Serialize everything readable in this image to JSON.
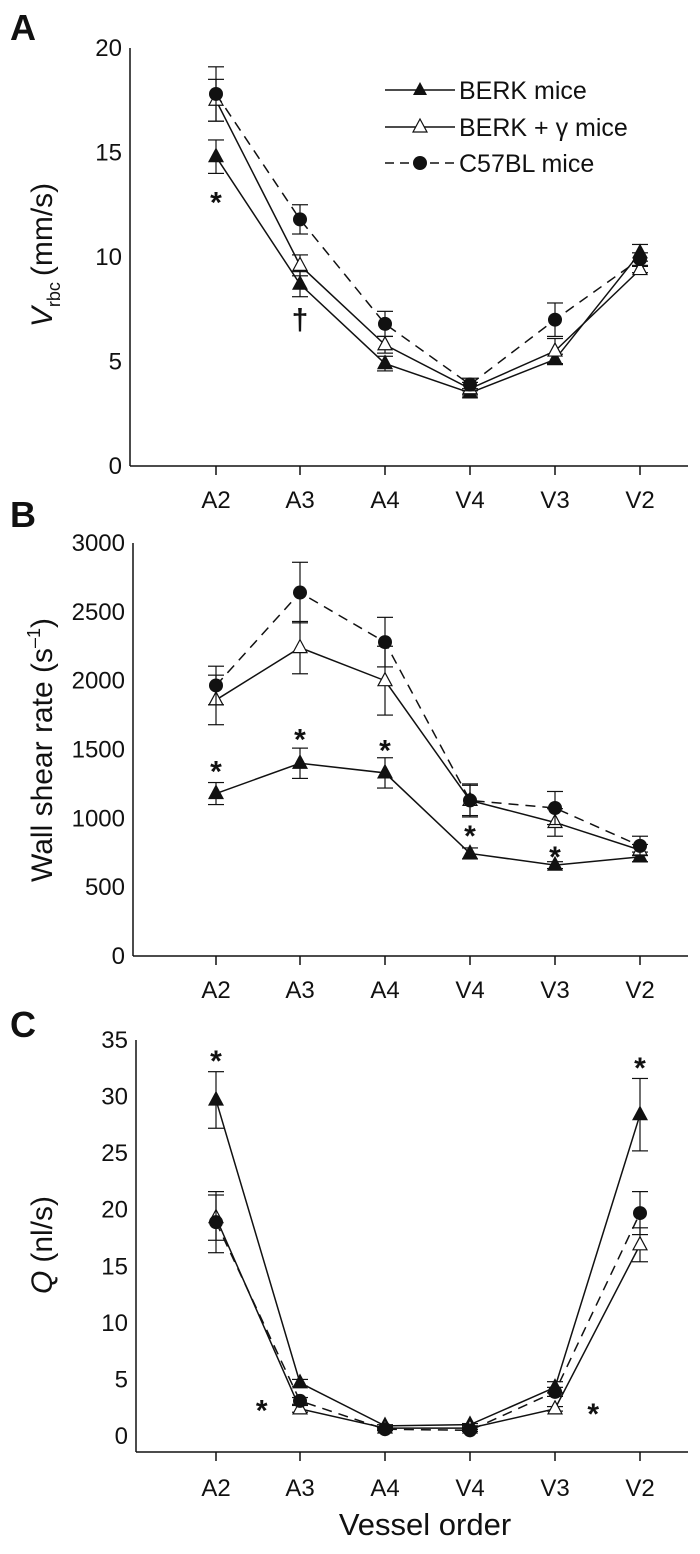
{
  "chart_data": [
    {
      "type": "line",
      "panel_label": "A",
      "ylabel_main": "V",
      "ylabel_sub": "rbc",
      "ylabel_unit": "(mm/s)",
      "categories": [
        "A2",
        "A3",
        "A4",
        "V4",
        "V3",
        "V2"
      ],
      "ylim": [
        0,
        20
      ],
      "yticks": [
        "0",
        "5",
        "10",
        "15",
        "20"
      ],
      "grid": false,
      "legend_position": "top-right",
      "series": [
        {
          "name": "BERK mice",
          "marker": "filled-triangle",
          "line": "solid",
          "values": [
            14.8,
            8.7,
            4.9,
            3.5,
            5.1,
            10.2
          ],
          "error": [
            0.8,
            0.6,
            0.35,
            0.2,
            0.25,
            0.4
          ]
        },
        {
          "name": "BERK + γ mice",
          "marker": "open-triangle",
          "line": "solid",
          "values": [
            17.5,
            9.6,
            5.8,
            3.7,
            5.5,
            9.4
          ],
          "error": [
            1.0,
            0.5,
            0.4,
            0.3,
            0.6,
            0.15
          ]
        },
        {
          "name": "C57BL mice",
          "marker": "filled-circle",
          "line": "dashed",
          "values": [
            17.8,
            11.8,
            6.8,
            3.9,
            7.0,
            9.9
          ],
          "error": [
            1.3,
            0.7,
            0.6,
            0.3,
            0.8,
            0.3
          ]
        }
      ],
      "annotations": [
        {
          "text": "*",
          "category": "A2",
          "y": 12.8
        },
        {
          "text": "†",
          "category": "A3",
          "y": 7.2
        }
      ]
    },
    {
      "type": "line",
      "panel_label": "B",
      "ylabel": "Wall shear rate (s",
      "ylabel_sup": "–1",
      "ylabel_close": ")",
      "categories": [
        "A2",
        "A3",
        "A4",
        "V4",
        "V3",
        "V2"
      ],
      "ylim": [
        0,
        3000
      ],
      "yticks": [
        "0",
        "500",
        "1000",
        "1500",
        "2000",
        "2500",
        "3000"
      ],
      "grid": false,
      "series": [
        {
          "name": "BERK mice",
          "marker": "filled-triangle",
          "line": "solid",
          "values": [
            1180,
            1400,
            1330,
            745,
            660,
            720
          ],
          "error": [
            80,
            110,
            110,
            40,
            25,
            35
          ]
        },
        {
          "name": "BERK + γ mice",
          "marker": "open-triangle",
          "line": "solid",
          "values": [
            1860,
            2240,
            2000,
            1130,
            970,
            770
          ],
          "error": [
            180,
            190,
            250,
            110,
            100,
            40
          ]
        },
        {
          "name": "C57BL mice",
          "marker": "filled-circle",
          "line": "dashed",
          "values": [
            1965,
            2640,
            2280,
            1130,
            1075,
            800
          ],
          "error": [
            140,
            220,
            180,
            120,
            120,
            70
          ]
        }
      ],
      "annotations": [
        {
          "text": "*",
          "category": "A2",
          "y": 1370
        },
        {
          "text": "*",
          "category": "A3",
          "y": 1600
        },
        {
          "text": "*",
          "category": "A4",
          "y": 1520
        },
        {
          "text": "*",
          "category": "V4",
          "y": 900
        },
        {
          "text": "*",
          "category": "V3",
          "y": 750
        }
      ]
    },
    {
      "type": "line",
      "panel_label": "C",
      "ylabel_main": "Q",
      "ylabel_unit": "(nl/s)",
      "xlabel": "Vessel order",
      "categories": [
        "A2",
        "A3",
        "A4",
        "V4",
        "V3",
        "V2"
      ],
      "ylim": [
        0,
        35
      ],
      "yticks": [
        "0",
        "5",
        "10",
        "15",
        "20",
        "25",
        "30",
        "35"
      ],
      "grid": false,
      "series": [
        {
          "name": "BERK mice",
          "marker": "filled-triangle",
          "line": "solid",
          "values": [
            29.7,
            4.7,
            0.9,
            1.0,
            4.3,
            28.4
          ],
          "error": [
            2.5,
            0.3,
            0.1,
            0.1,
            0.5,
            3.2
          ]
        },
        {
          "name": "BERK + γ mice",
          "marker": "open-triangle",
          "line": "solid",
          "values": [
            19.3,
            2.4,
            0.7,
            0.7,
            2.4,
            16.9
          ],
          "error": [
            2.0,
            0.3,
            0.1,
            0.1,
            0.2,
            1.5
          ]
        },
        {
          "name": "C57BL mice",
          "marker": "filled-circle",
          "line": "dashed",
          "values": [
            18.9,
            3.1,
            0.6,
            0.5,
            3.9,
            19.7
          ],
          "error": [
            2.7,
            0.3,
            0.1,
            0.1,
            0.4,
            1.9
          ]
        }
      ],
      "annotations": [
        {
          "text": "*",
          "category": "A2",
          "y": 33.5
        },
        {
          "text": "*",
          "category": "V2",
          "y": 32.9
        },
        {
          "text": "*",
          "category": "A3",
          "y": 2.6,
          "dx": -0.45
        },
        {
          "text": "*",
          "category": "V3",
          "y": 2.3,
          "dx": 0.45
        }
      ]
    }
  ]
}
